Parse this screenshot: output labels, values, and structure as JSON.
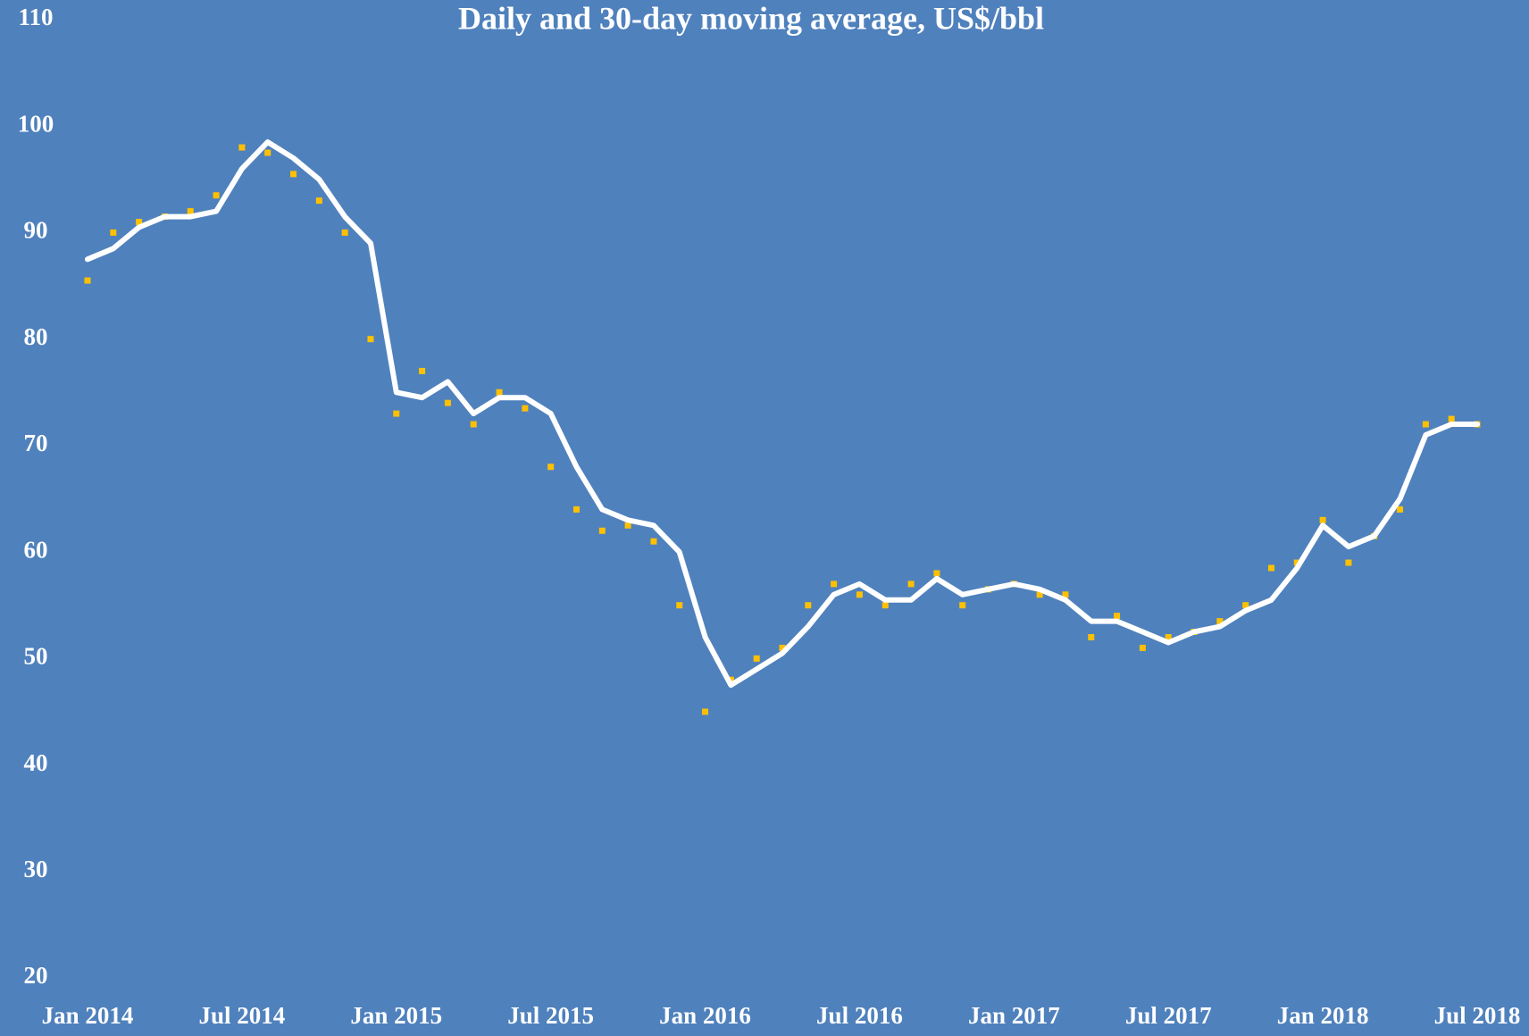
{
  "chart_data": {
    "type": "line",
    "title": "Daily and 30-day moving average, US$/bbl",
    "x": [
      "Jan 2014",
      null,
      null,
      null,
      null,
      null,
      "Jul 2014",
      null,
      null,
      null,
      null,
      null,
      "Jan 2015",
      null,
      null,
      null,
      null,
      null,
      "Jul 2015",
      null,
      null,
      null,
      null,
      null,
      "Jan 2016",
      null,
      null,
      null,
      null,
      null,
      "Jul 2016",
      null,
      null,
      null,
      null,
      null,
      "Jan 2017",
      null,
      null,
      null,
      null,
      null,
      "Jul 2017",
      null,
      null,
      null,
      null,
      null,
      "Jan 2018",
      null,
      null,
      null,
      null,
      null,
      "Jul 2018"
    ],
    "series": [
      {
        "type": "scatter",
        "color": "#ffc000",
        "values": [
          85.5,
          90,
          91,
          91.5,
          92,
          93.5,
          98,
          97.5,
          95.5,
          93,
          90,
          80,
          73,
          77,
          74,
          72,
          75,
          73.5,
          68,
          64,
          62,
          62.5,
          61,
          55,
          45,
          48,
          50,
          51,
          55,
          57,
          56,
          55,
          57,
          58,
          55,
          56.5,
          57,
          56,
          56,
          52,
          54,
          51,
          52,
          52.5,
          53.5,
          55,
          58.5,
          59,
          63,
          59,
          61.5,
          64,
          72,
          72.5,
          72
        ]
      },
      {
        "type": "line",
        "color": "#ffffff",
        "values": [
          87.5,
          88.5,
          90.5,
          91.5,
          91.5,
          92,
          96,
          98.5,
          97,
          95,
          91.5,
          89,
          75,
          74.5,
          76,
          73,
          74.5,
          74.5,
          73,
          68,
          64,
          63,
          62.5,
          60,
          52,
          47.5,
          49,
          50.5,
          53,
          56,
          57,
          55.5,
          55.5,
          57.5,
          56,
          56.5,
          57,
          56.5,
          55.5,
          53.5,
          53.5,
          52.5,
          51.5,
          52.5,
          53,
          54.5,
          55.5,
          58.5,
          62.5,
          60.5,
          61.5,
          65,
          71,
          72,
          72
        ]
      }
    ],
    "ylim": [
      20,
      110
    ],
    "yticks": [
      20,
      30,
      40,
      50,
      60,
      70,
      80,
      90,
      100,
      110
    ],
    "grid": false
  }
}
